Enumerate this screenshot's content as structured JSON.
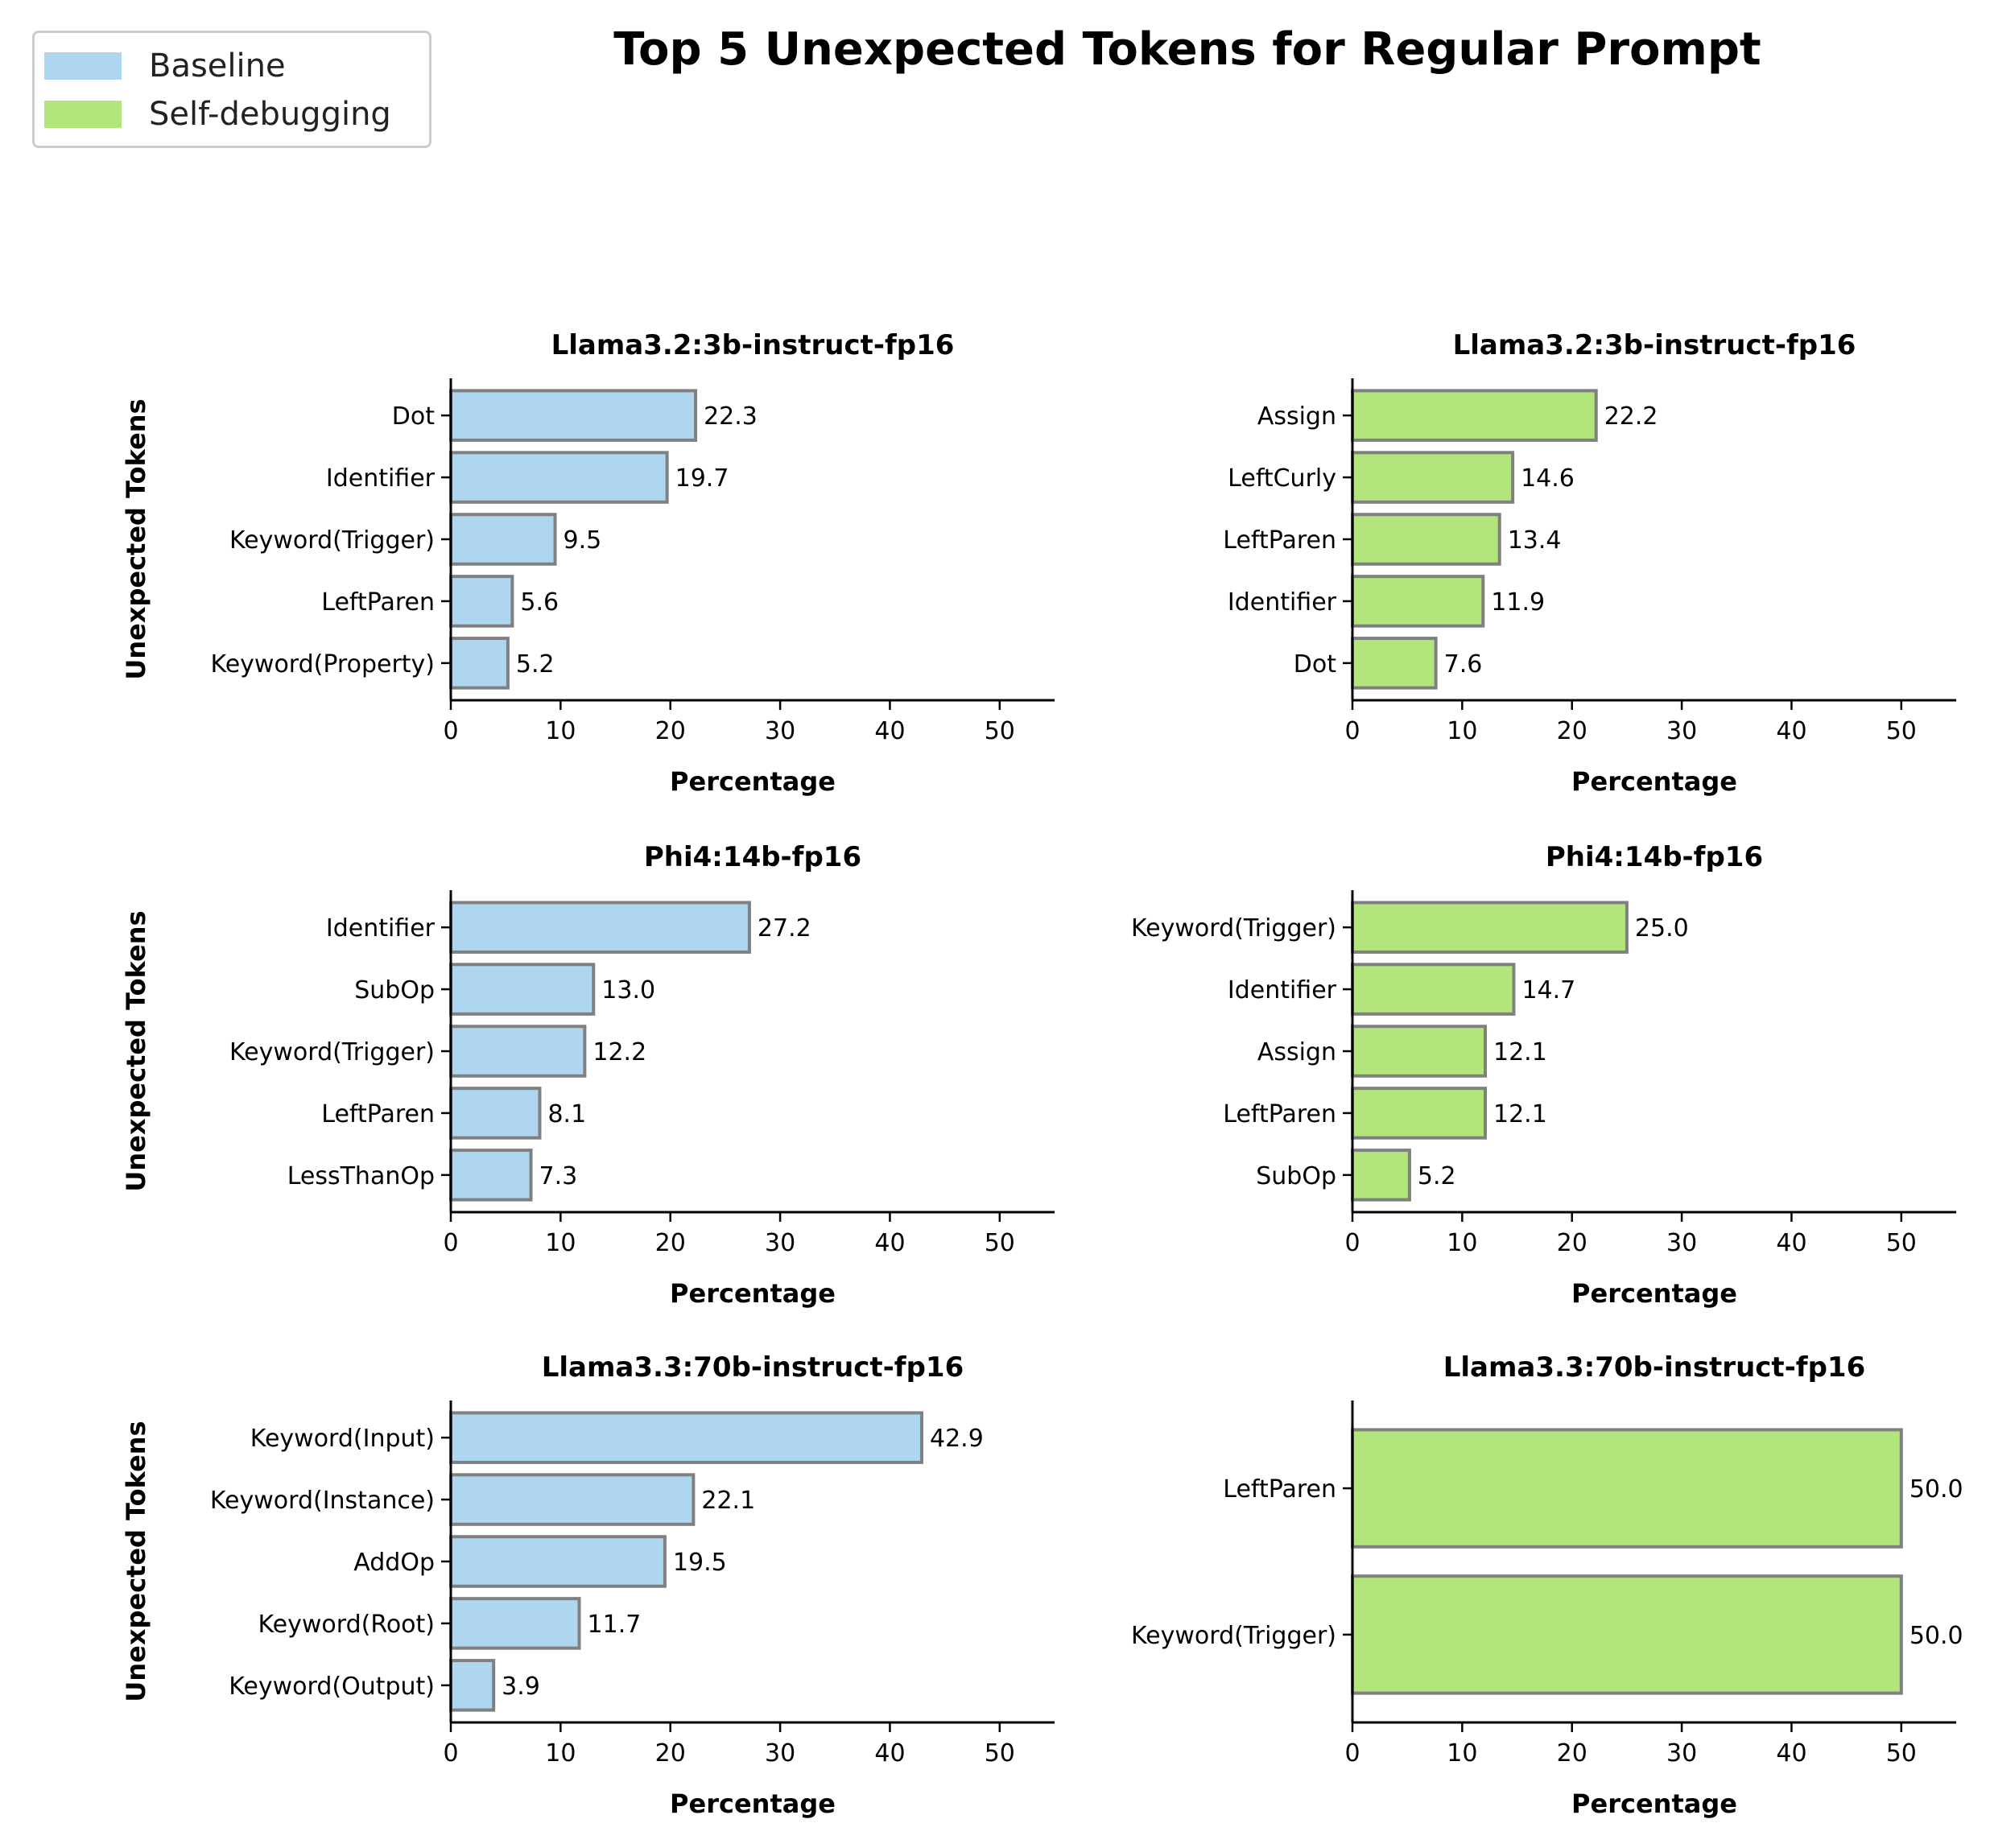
{
  "title": "Top 5 Unexpected Tokens for Regular Prompt",
  "legend": {
    "items": [
      {
        "label": "Baseline",
        "color": "#aed6f1"
      },
      {
        "label": "Self-debugging",
        "color": "#b2e57b"
      }
    ]
  },
  "colors": {
    "baseline": "#aed6f1",
    "self_debugging": "#b2e57b",
    "bar_edge": "#808080"
  },
  "chart_data": [
    {
      "type": "bar",
      "orientation": "horizontal",
      "group": "Baseline",
      "title": "Llama3.2:3b-instruct-fp16",
      "xlabel": "Percentage",
      "ylabel": "Unexpected Tokens",
      "xlim": [
        0,
        55
      ],
      "xticks": [
        0,
        10,
        20,
        30,
        40,
        50
      ],
      "categories": [
        "Dot",
        "Identifier",
        "Keyword(Trigger)",
        "LeftParen",
        "Keyword(Property)"
      ],
      "values": [
        22.3,
        19.7,
        9.5,
        5.6,
        5.2
      ],
      "value_labels": [
        "22.3",
        "19.7",
        "9.5",
        "5.6",
        "5.2"
      ]
    },
    {
      "type": "bar",
      "orientation": "horizontal",
      "group": "Self-debugging",
      "title": "Llama3.2:3b-instruct-fp16",
      "xlabel": "Percentage",
      "ylabel": "",
      "xlim": [
        0,
        55
      ],
      "xticks": [
        0,
        10,
        20,
        30,
        40,
        50
      ],
      "categories": [
        "Assign",
        "LeftCurly",
        "LeftParen",
        "Identifier",
        "Dot"
      ],
      "values": [
        22.2,
        14.6,
        13.4,
        11.9,
        7.6
      ],
      "value_labels": [
        "22.2",
        "14.6",
        "13.4",
        "11.9",
        "7.6"
      ]
    },
    {
      "type": "bar",
      "orientation": "horizontal",
      "group": "Baseline",
      "title": "Phi4:14b-fp16",
      "xlabel": "Percentage",
      "ylabel": "Unexpected Tokens",
      "xlim": [
        0,
        55
      ],
      "xticks": [
        0,
        10,
        20,
        30,
        40,
        50
      ],
      "categories": [
        "Identifier",
        "SubOp",
        "Keyword(Trigger)",
        "LeftParen",
        "LessThanOp"
      ],
      "values": [
        27.2,
        13.0,
        12.2,
        8.1,
        7.3
      ],
      "value_labels": [
        "27.2",
        "13.0",
        "12.2",
        "8.1",
        "7.3"
      ]
    },
    {
      "type": "bar",
      "orientation": "horizontal",
      "group": "Self-debugging",
      "title": "Phi4:14b-fp16",
      "xlabel": "Percentage",
      "ylabel": "",
      "xlim": [
        0,
        55
      ],
      "xticks": [
        0,
        10,
        20,
        30,
        40,
        50
      ],
      "categories": [
        "Keyword(Trigger)",
        "Identifier",
        "Assign",
        "LeftParen",
        "SubOp"
      ],
      "values": [
        25.0,
        14.7,
        12.1,
        12.1,
        5.2
      ],
      "value_labels": [
        "25.0",
        "14.7",
        "12.1",
        "12.1",
        "5.2"
      ]
    },
    {
      "type": "bar",
      "orientation": "horizontal",
      "group": "Baseline",
      "title": "Llama3.3:70b-instruct-fp16",
      "xlabel": "Percentage",
      "ylabel": "Unexpected Tokens",
      "xlim": [
        0,
        55
      ],
      "xticks": [
        0,
        10,
        20,
        30,
        40,
        50
      ],
      "categories": [
        "Keyword(Input)",
        "Keyword(Instance)",
        "AddOp",
        "Keyword(Root)",
        "Keyword(Output)"
      ],
      "values": [
        42.9,
        22.1,
        19.5,
        11.7,
        3.9
      ],
      "value_labels": [
        "42.9",
        "22.1",
        "19.5",
        "11.7",
        "3.9"
      ]
    },
    {
      "type": "bar",
      "orientation": "horizontal",
      "group": "Self-debugging",
      "title": "Llama3.3:70b-instruct-fp16",
      "xlabel": "Percentage",
      "ylabel": "",
      "xlim": [
        0,
        55
      ],
      "xticks": [
        0,
        10,
        20,
        30,
        40,
        50
      ],
      "categories": [
        "LeftParen",
        "Keyword(Trigger)"
      ],
      "values": [
        50.0,
        50.0
      ],
      "value_labels": [
        "50.0",
        "50.0"
      ]
    }
  ]
}
